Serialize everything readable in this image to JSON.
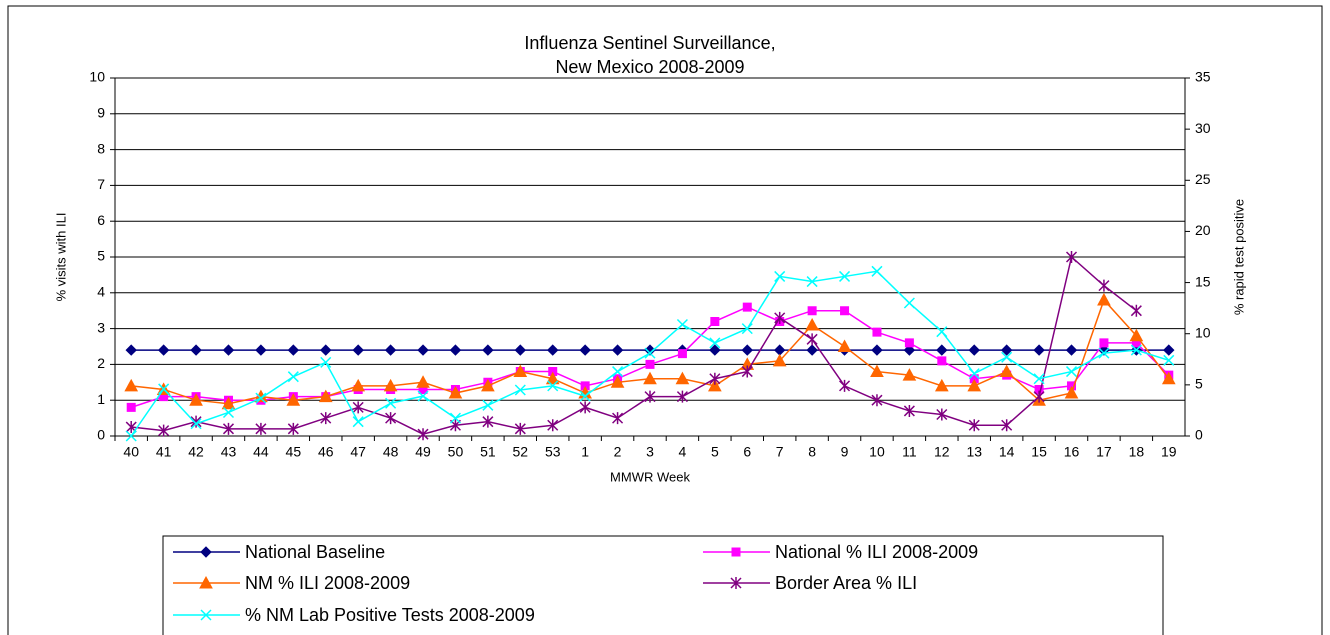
{
  "chart_data": {
    "type": "line",
    "title": [
      "Influenza Sentinel Surveillance,",
      "New Mexico 2008-2009"
    ],
    "x_label": "MMWR Week",
    "y_label": "% visits with ILI",
    "y2_label": "% rapid test positive",
    "categories": [
      "40",
      "41",
      "42",
      "43",
      "44",
      "45",
      "46",
      "47",
      "48",
      "49",
      "50",
      "51",
      "52",
      "53",
      "1",
      "2",
      "3",
      "4",
      "5",
      "6",
      "7",
      "8",
      "9",
      "10",
      "11",
      "12",
      "13",
      "14",
      "15",
      "16",
      "17",
      "18",
      "19"
    ],
    "ylim": [
      0,
      10
    ],
    "yticks": [
      0,
      1,
      2,
      3,
      4,
      5,
      6,
      7,
      8,
      9,
      10
    ],
    "y2lim": [
      0,
      35
    ],
    "y2ticks": [
      0,
      5,
      10,
      15,
      20,
      25,
      30,
      35
    ],
    "grid": true,
    "legend": "bottom",
    "series": [
      {
        "name": "National Baseline",
        "color": "#000080",
        "marker": "diamond",
        "values": [
          2.4,
          2.4,
          2.4,
          2.4,
          2.4,
          2.4,
          2.4,
          2.4,
          2.4,
          2.4,
          2.4,
          2.4,
          2.4,
          2.4,
          2.4,
          2.4,
          2.4,
          2.4,
          2.4,
          2.4,
          2.4,
          2.4,
          2.4,
          2.4,
          2.4,
          2.4,
          2.4,
          2.4,
          2.4,
          2.4,
          2.4,
          2.4,
          2.4
        ]
      },
      {
        "name": "National % ILI 2008-2009",
        "color": "#FF00FF",
        "marker": "square",
        "values": [
          0.8,
          1.1,
          1.1,
          1.0,
          1.0,
          1.1,
          1.1,
          1.3,
          1.3,
          1.3,
          1.3,
          1.5,
          1.8,
          1.8,
          1.4,
          1.6,
          2.0,
          2.3,
          3.2,
          3.6,
          3.2,
          3.5,
          3.5,
          2.9,
          2.6,
          2.1,
          1.6,
          1.7,
          1.3,
          1.4,
          2.6,
          2.6,
          1.7
        ]
      },
      {
        "name": "NM % ILI 2008-2009",
        "color": "#FF6600",
        "marker": "triangle",
        "values": [
          1.4,
          1.3,
          1.0,
          0.9,
          1.1,
          1.0,
          1.1,
          1.4,
          1.4,
          1.5,
          1.2,
          1.4,
          1.8,
          1.6,
          1.2,
          1.5,
          1.6,
          1.6,
          1.4,
          2.0,
          2.1,
          3.1,
          2.5,
          1.8,
          1.7,
          1.4,
          1.4,
          1.8,
          1.0,
          1.2,
          3.8,
          2.8,
          1.6
        ]
      },
      {
        "name": "Border Area % ILI",
        "color": "#800080",
        "marker": "star",
        "values": [
          0.25,
          0.15,
          0.4,
          0.2,
          0.2,
          0.2,
          0.5,
          0.8,
          0.5,
          0.05,
          0.3,
          0.4,
          0.2,
          0.3,
          0.8,
          0.5,
          1.1,
          1.1,
          1.6,
          1.8,
          3.3,
          2.7,
          1.4,
          1.0,
          0.7,
          0.6,
          0.3,
          0.3,
          1.1,
          5.0,
          4.2,
          3.5,
          null
        ]
      },
      {
        "name": "% NM Lab Positive Tests 2008-2009",
        "color": "#00FFFF",
        "marker": "x",
        "axis": "y2",
        "values": [
          0,
          4.6,
          1.2,
          2.3,
          3.7,
          5.8,
          7.2,
          1.4,
          3.2,
          3.9,
          1.75,
          3.0,
          4.5,
          4.9,
          3.9,
          6.3,
          8.1,
          10.9,
          9.1,
          10.5,
          15.6,
          15.1,
          15.6,
          16.1,
          13.0,
          10.2,
          6.1,
          7.7,
          5.6,
          6.3,
          8.1,
          8.4,
          7.4
        ]
      }
    ]
  }
}
